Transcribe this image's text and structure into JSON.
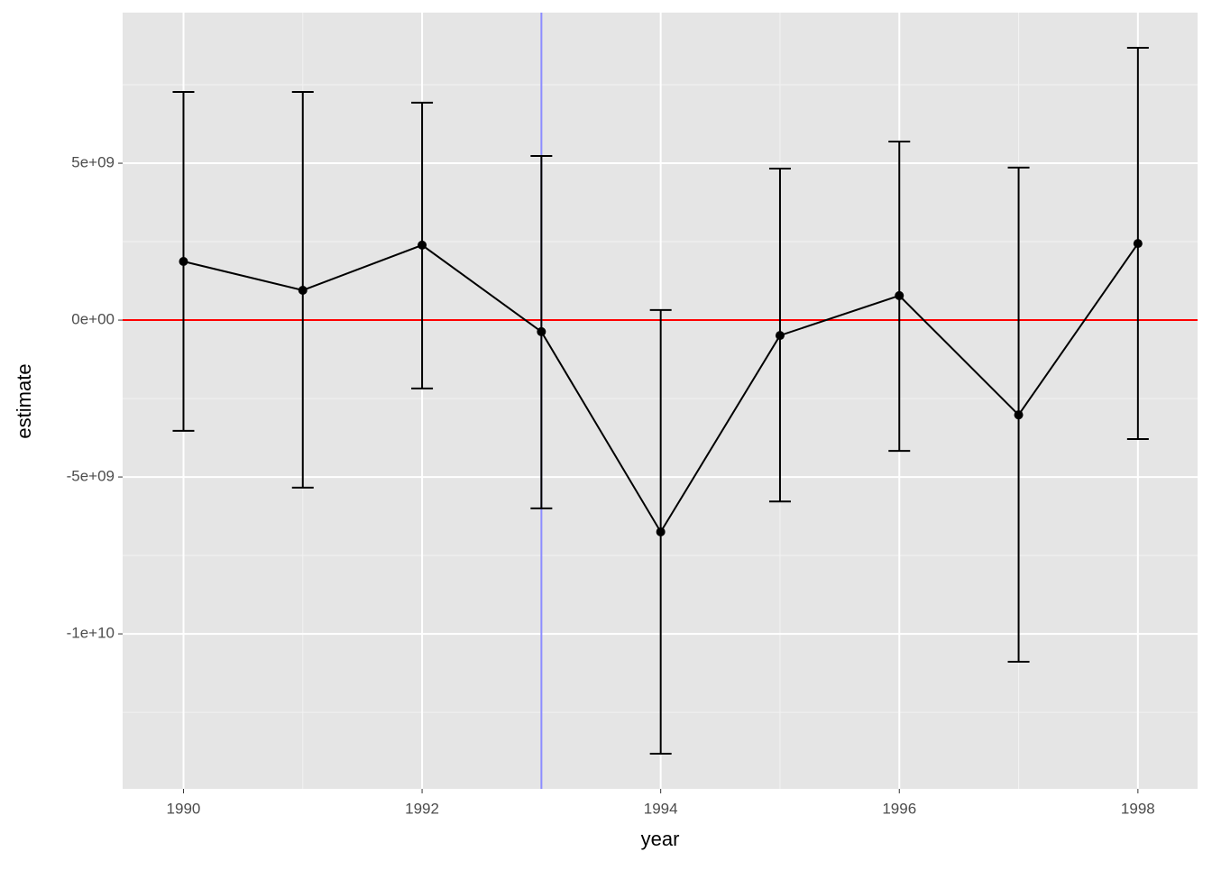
{
  "chart_data": {
    "type": "errorbar-line",
    "x_label": "year",
    "y_label": "estimate",
    "x": [
      1990,
      1991,
      1992,
      1993,
      1994,
      1995,
      1996,
      1997,
      1998
    ],
    "series": [
      {
        "color": "#000000",
        "values": [
          1870000000,
          950000000,
          2390000000,
          -370000000,
          -6750000000,
          -490000000,
          780000000,
          -3020000000,
          2440000000
        ],
        "lower": [
          -3530000000,
          -5340000000,
          -2180000000,
          -6000000000,
          -13820000000,
          -5780000000,
          -4170000000,
          -10890000000,
          -3790000000
        ],
        "upper": [
          7270000000,
          7270000000,
          6930000000,
          5230000000,
          320000000,
          4830000000,
          5690000000,
          4860000000,
          8680000000
        ]
      }
    ],
    "xlim": [
      1989.49,
      1998.5
    ],
    "ylim": [
      -14940000000,
      9800000000
    ],
    "xticks": [
      1990,
      1992,
      1994,
      1996,
      1998
    ],
    "xminor": [
      1991,
      1993,
      1995,
      1997
    ],
    "yticks": [
      {
        "value": -10000000000,
        "label": "-1e+10"
      },
      {
        "value": -5000000000,
        "label": "-5e+09"
      },
      {
        "value": 0,
        "label": "0e+00"
      },
      {
        "value": 5000000000,
        "label": "5e+09"
      }
    ],
    "yminor": [
      -12500000000,
      -7500000000,
      -2500000000,
      2500000000,
      7500000000
    ],
    "hline": {
      "value": 0,
      "color": "#ff0000"
    },
    "vline": {
      "value": 1993,
      "color": "#8c8cff"
    },
    "grid": true
  }
}
